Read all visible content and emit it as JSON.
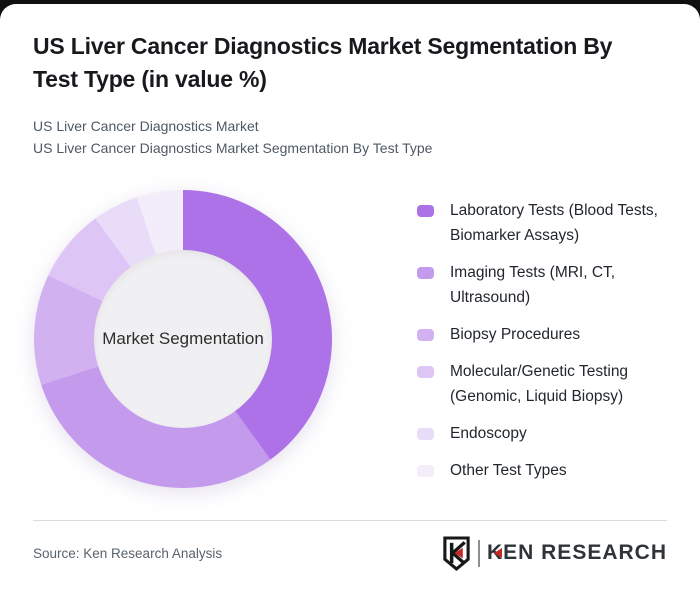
{
  "header": {
    "title_lines": [
      "US Liver Cancer Diagnostics Market Segmentation By",
      "Test Type (in value %)"
    ],
    "subtitle_lines": [
      "US Liver Cancer Diagnostics Market",
      "US Liver Cancer Diagnostics Market Segmentation By Test Type"
    ]
  },
  "chart_data": {
    "type": "pie",
    "donut": true,
    "title": "US Liver Cancer Diagnostics Market Segmentation By Test Type (in value %)",
    "unit": "value %",
    "center_label": "Market Segmentation",
    "legend_position": "right",
    "start_angle_deg": 0,
    "segments": [
      {
        "label": "Laboratory Tests (Blood Tests, Biomarker Assays)",
        "value": 40,
        "color": "#ad72e7"
      },
      {
        "label": "Imaging Tests (MRI, CT, Ultrasound)",
        "value": 30,
        "color": "#c49aed"
      },
      {
        "label": "Biopsy Procedures",
        "value": 12,
        "color": "#d2b1f1"
      },
      {
        "label": "Molecular/Genetic Testing (Genomic, Liquid Biopsy)",
        "value": 8,
        "color": "#ddc6f5"
      },
      {
        "label": "Endoscopy",
        "value": 5,
        "color": "#e9dcf9"
      },
      {
        "label": "Other Test Types",
        "value": 5,
        "color": "#f3edfb"
      }
    ]
  },
  "footer": {
    "source": "Source: Ken Research Analysis",
    "logo_text": "KEN RESEARCH"
  },
  "colors": {
    "card_background": "#ffffff",
    "page_background": "#101010",
    "donut_hole": "#f0eff1",
    "title_text": "#17191c",
    "subtitle_text": "#4d5966",
    "legend_text": "#22272e",
    "source_text": "#57636e",
    "divider": "#d8dce0",
    "logo_red": "#c62828",
    "logo_dark": "#2f3438"
  }
}
